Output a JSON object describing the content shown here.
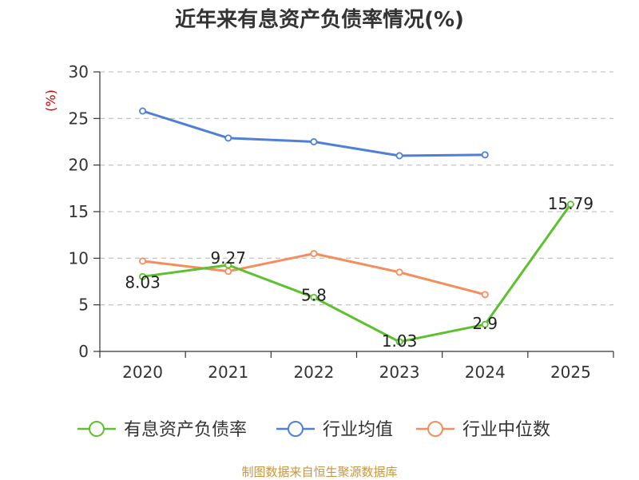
{
  "chart_data": {
    "type": "line",
    "title": "近年来有息资产负债率情况(%)",
    "ylabel": "(%)",
    "xlabel": "",
    "categories": [
      "2020",
      "2021",
      "2022",
      "2023",
      "2024",
      "2025"
    ],
    "ylim": [
      0,
      30
    ],
    "yticks": [
      0,
      5,
      10,
      15,
      20,
      25,
      30
    ],
    "grid": true,
    "legend_position": "bottom",
    "series": [
      {
        "name": "有息资产负债率",
        "color": "#5cc12e",
        "values": [
          8.03,
          9.27,
          5.8,
          1.03,
          2.9,
          15.79
        ],
        "labels": [
          "8.03",
          "9.27",
          "5.8",
          "1.03",
          "2.9",
          "15.79"
        ]
      },
      {
        "name": "行业均值",
        "color": "#4f7fd9",
        "values": [
          25.8,
          22.9,
          22.5,
          21.0,
          21.1,
          null
        ]
      },
      {
        "name": "行业中位数",
        "color": "#f58d5c",
        "values": [
          9.7,
          8.6,
          10.5,
          8.5,
          6.1,
          null
        ]
      }
    ]
  },
  "source": "制图数据来自恒生聚源数据库"
}
